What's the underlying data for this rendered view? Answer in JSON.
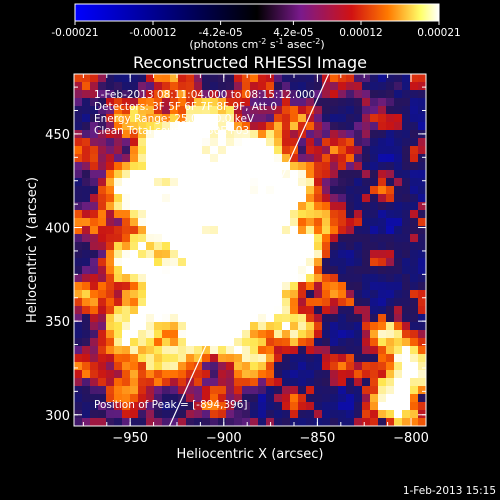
{
  "chart_data": {
    "type": "heatmap",
    "title": "Reconstructed RHESSI Image",
    "colorbar": {
      "ticks": [
        "-0.00021",
        "-0.00012",
        "-4.2e-05",
        "4.2e-05",
        "0.00012",
        "0.00021"
      ],
      "range": [
        -0.00021,
        0.00021
      ],
      "label_pre": "(photons cm",
      "label_exp1": "-2",
      "label_mid": " s",
      "label_exp2": "-1",
      "label_mid2": " asec",
      "label_exp3": "-2",
      "label_post": ")",
      "colors": [
        "#0000ff",
        "#000000",
        "#7a1a8c",
        "#d11212",
        "#ff7a00",
        "#ffff6a",
        "#ffffff"
      ]
    },
    "xlabel": "Heliocentric X (arcsec)",
    "ylabel": "Heliocentric Y (arcsec)",
    "xlim": [
      -980,
      -792
    ],
    "ylim": [
      294,
      482
    ],
    "xticks": [
      -950,
      -900,
      -850,
      -800
    ],
    "yticks": [
      300,
      350,
      400,
      450
    ],
    "limb_line": {
      "x": [
        -929,
        -844
      ],
      "y": [
        294,
        482
      ]
    },
    "annotations": [
      "1-Feb-2013 08:11:04.000 to 08:15:12.000",
      "Detectors: 3F 5F 6F 7F 8F 9F, Att 0",
      "Energy Range: 25.0 - 50.0 keV",
      "Clean    Total counts: 5.30E+03"
    ],
    "peak_label": "Position of Peak = [-894,396]",
    "peak": [
      -894,
      396
    ]
  },
  "footer": {
    "timestamp": "1-Feb-2013 15:15"
  }
}
